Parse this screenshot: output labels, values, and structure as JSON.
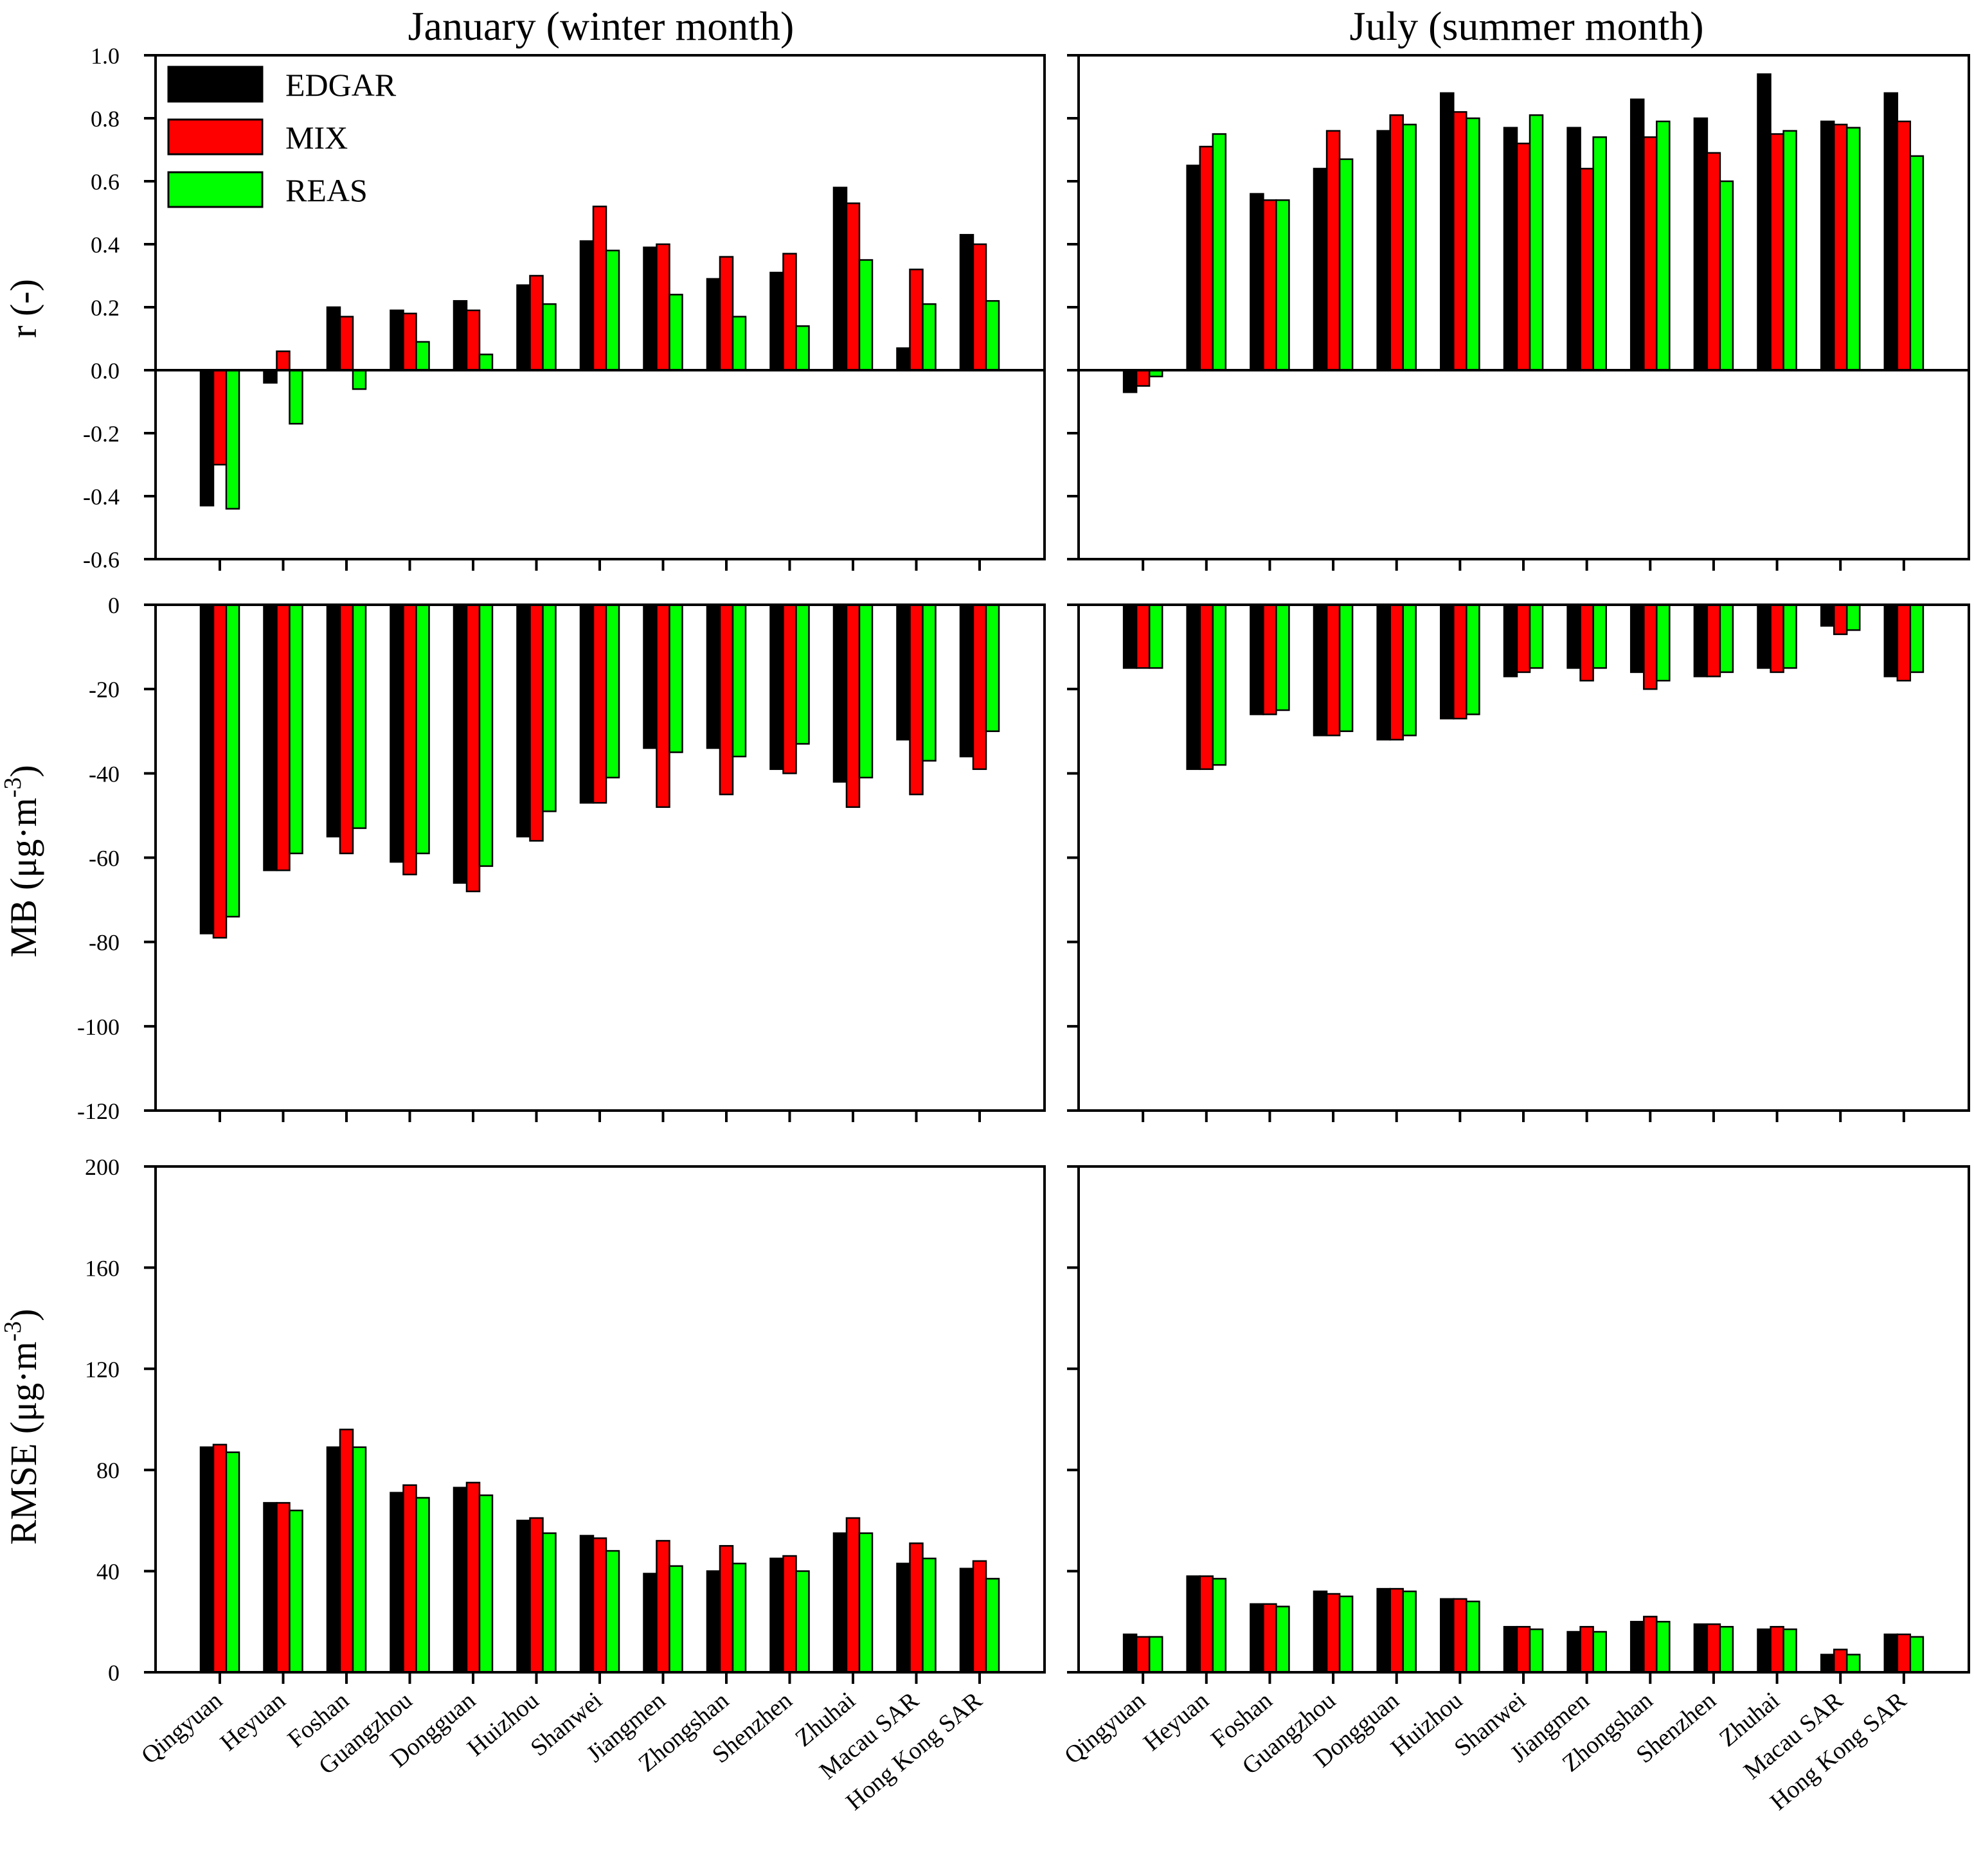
{
  "column_titles": [
    "January (winter month)",
    "July (summer month)"
  ],
  "legend": [
    {
      "name": "EDGAR",
      "color": "#000000"
    },
    {
      "name": "MIX",
      "color": "#ff0000"
    },
    {
      "name": "REAS",
      "color": "#00ff00"
    }
  ],
  "row_labels": {
    "r": "r (-)",
    "mb_main": "MB (μg·m",
    "mb_sup": "-3",
    "mb_close": ")",
    "rmse_main": "RMSE (μg·m",
    "rmse_sup": "-3",
    "rmse_close": ")"
  },
  "tick_labels": {
    "r": [
      "1.0",
      "0.8",
      "0.6",
      "0.4",
      "0.2",
      "0.0",
      "-0.2",
      "-0.4",
      "-0.6"
    ],
    "mb": [
      "0",
      "-20",
      "-40",
      "-60",
      "-80",
      "-100",
      "-120"
    ],
    "rmse": [
      "200",
      "160",
      "120",
      "80",
      "40",
      "0"
    ]
  },
  "chart_data": [
    {
      "type": "bar",
      "panel": "r-january",
      "metric": "r",
      "month": "January (winter month)",
      "ylabel": "r (-)",
      "ylim": [
        -0.6,
        1.0
      ],
      "categories": [
        "Qingyuan",
        "Heyuan",
        "Foshan",
        "Guangzhou",
        "Dongguan",
        "Huizhou",
        "Shanwei",
        "Jiangmen",
        "Zhongshan",
        "Shenzhen",
        "Zhuhai",
        "Macau SAR",
        "Hong Kong SAR"
      ],
      "series": [
        {
          "name": "EDGAR",
          "values": [
            -0.43,
            -0.04,
            0.2,
            0.19,
            0.22,
            0.27,
            0.41,
            0.39,
            0.29,
            0.31,
            0.58,
            0.07,
            0.43
          ]
        },
        {
          "name": "MIX",
          "values": [
            -0.3,
            0.06,
            0.17,
            0.18,
            0.19,
            0.3,
            0.52,
            0.4,
            0.36,
            0.37,
            0.53,
            0.32,
            0.4
          ]
        },
        {
          "name": "REAS",
          "values": [
            -0.44,
            -0.17,
            -0.06,
            0.09,
            0.05,
            0.21,
            0.38,
            0.24,
            0.17,
            0.14,
            0.35,
            0.21,
            0.22
          ]
        }
      ]
    },
    {
      "type": "bar",
      "panel": "r-july",
      "metric": "r",
      "month": "July (summer month)",
      "ylabel": "r (-)",
      "ylim": [
        -0.6,
        1.0
      ],
      "categories": [
        "Qingyuan",
        "Heyuan",
        "Foshan",
        "Guangzhou",
        "Dongguan",
        "Huizhou",
        "Shanwei",
        "Jiangmen",
        "Zhongshan",
        "Shenzhen",
        "Zhuhai",
        "Macau SAR",
        "Hong Kong SAR"
      ],
      "series": [
        {
          "name": "EDGAR",
          "values": [
            -0.07,
            0.65,
            0.56,
            0.64,
            0.76,
            0.88,
            0.77,
            0.77,
            0.86,
            0.8,
            0.94,
            0.79,
            0.88
          ]
        },
        {
          "name": "MIX",
          "values": [
            -0.05,
            0.71,
            0.54,
            0.76,
            0.81,
            0.82,
            0.72,
            0.64,
            0.74,
            0.69,
            0.75,
            0.78,
            0.79
          ]
        },
        {
          "name": "REAS",
          "values": [
            -0.02,
            0.75,
            0.54,
            0.67,
            0.78,
            0.8,
            0.81,
            0.74,
            0.79,
            0.6,
            0.76,
            0.77,
            0.68
          ]
        }
      ]
    },
    {
      "type": "bar",
      "panel": "mb-january",
      "metric": "MB",
      "month": "January (winter month)",
      "ylabel": "MB (μg·m-3)",
      "ylim": [
        -120,
        0
      ],
      "categories": [
        "Qingyuan",
        "Heyuan",
        "Foshan",
        "Guangzhou",
        "Dongguan",
        "Huizhou",
        "Shanwei",
        "Jiangmen",
        "Zhongshan",
        "Shenzhen",
        "Zhuhai",
        "Macau SAR",
        "Hong Kong SAR"
      ],
      "series": [
        {
          "name": "EDGAR",
          "values": [
            -78,
            -63,
            -55,
            -61,
            -66,
            -55,
            -47,
            -34,
            -34,
            -39,
            -42,
            -32,
            -36
          ]
        },
        {
          "name": "MIX",
          "values": [
            -79,
            -63,
            -59,
            -64,
            -68,
            -56,
            -47,
            -48,
            -45,
            -40,
            -48,
            -45,
            -39
          ]
        },
        {
          "name": "REAS",
          "values": [
            -74,
            -59,
            -53,
            -59,
            -62,
            -49,
            -41,
            -35,
            -36,
            -33,
            -41,
            -37,
            -30
          ]
        }
      ]
    },
    {
      "type": "bar",
      "panel": "mb-july",
      "metric": "MB",
      "month": "July (summer month)",
      "ylabel": "MB (μg·m-3)",
      "ylim": [
        -120,
        0
      ],
      "categories": [
        "Qingyuan",
        "Heyuan",
        "Foshan",
        "Guangzhou",
        "Dongguan",
        "Huizhou",
        "Shanwei",
        "Jiangmen",
        "Zhongshan",
        "Shenzhen",
        "Zhuhai",
        "Macau SAR",
        "Hong Kong SAR"
      ],
      "series": [
        {
          "name": "EDGAR",
          "values": [
            -15,
            -39,
            -26,
            -31,
            -32,
            -27,
            -17,
            -15,
            -16,
            -17,
            -15,
            -5,
            -17
          ]
        },
        {
          "name": "MIX",
          "values": [
            -15,
            -39,
            -26,
            -31,
            -32,
            -27,
            -16,
            -18,
            -20,
            -17,
            -16,
            -7,
            -18
          ]
        },
        {
          "name": "REAS",
          "values": [
            -15,
            -38,
            -25,
            -30,
            -31,
            -26,
            -15,
            -15,
            -18,
            -16,
            -15,
            -6,
            -16
          ]
        }
      ]
    },
    {
      "type": "bar",
      "panel": "rmse-january",
      "metric": "RMSE",
      "month": "January (winter month)",
      "ylabel": "RMSE (μg·m-3)",
      "ylim": [
        0,
        200
      ],
      "categories": [
        "Qingyuan",
        "Heyuan",
        "Foshan",
        "Guangzhou",
        "Dongguan",
        "Huizhou",
        "Shanwei",
        "Jiangmen",
        "Zhongshan",
        "Shenzhen",
        "Zhuhai",
        "Macau SAR",
        "Hong Kong SAR"
      ],
      "series": [
        {
          "name": "EDGAR",
          "values": [
            89,
            67,
            89,
            71,
            73,
            60,
            54,
            39,
            40,
            45,
            55,
            43,
            41
          ]
        },
        {
          "name": "MIX",
          "values": [
            90,
            67,
            96,
            74,
            75,
            61,
            53,
            52,
            50,
            46,
            61,
            51,
            44
          ]
        },
        {
          "name": "REAS",
          "values": [
            87,
            64,
            89,
            69,
            70,
            55,
            48,
            42,
            43,
            40,
            55,
            45,
            37
          ]
        }
      ]
    },
    {
      "type": "bar",
      "panel": "rmse-july",
      "metric": "RMSE",
      "month": "July (summer month)",
      "ylabel": "RMSE (μg·m-3)",
      "ylim": [
        0,
        200
      ],
      "categories": [
        "Qingyuan",
        "Heyuan",
        "Foshan",
        "Guangzhou",
        "Dongguan",
        "Huizhou",
        "Shanwei",
        "Jiangmen",
        "Zhongshan",
        "Shenzhen",
        "Zhuhai",
        "Macau SAR",
        "Hong Kong SAR"
      ],
      "series": [
        {
          "name": "EDGAR",
          "values": [
            15,
            38,
            27,
            32,
            33,
            29,
            18,
            16,
            20,
            19,
            17,
            7,
            15
          ]
        },
        {
          "name": "MIX",
          "values": [
            14,
            38,
            27,
            31,
            33,
            29,
            18,
            18,
            22,
            19,
            18,
            9,
            15
          ]
        },
        {
          "name": "REAS",
          "values": [
            14,
            37,
            26,
            30,
            32,
            28,
            17,
            16,
            20,
            18,
            17,
            7,
            14
          ]
        }
      ]
    }
  ]
}
